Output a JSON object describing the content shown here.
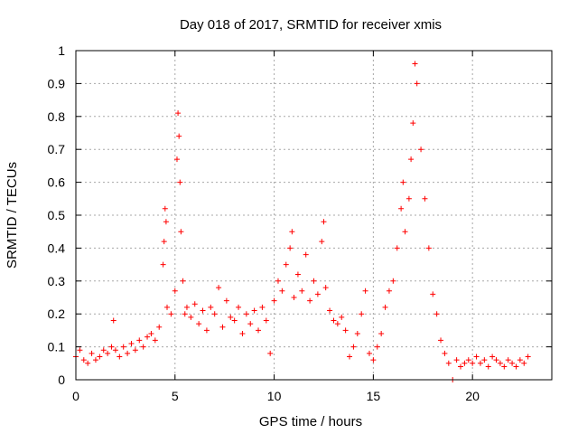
{
  "chart_data": {
    "type": "scatter",
    "title": "Day 018 of 2017, SRMTID for receiver xmis",
    "xlabel": "GPS time / hours",
    "ylabel": "SRMTID / TECUs",
    "xlim": [
      0,
      24
    ],
    "ylim": [
      0,
      1
    ],
    "xticks": [
      0,
      5,
      10,
      15,
      20
    ],
    "xtick_labels": [
      "0",
      "5",
      "10",
      "15",
      "20"
    ],
    "yticks": [
      0,
      0.1,
      0.2,
      0.3,
      0.4,
      0.5,
      0.6,
      0.7,
      0.8,
      0.9,
      1
    ],
    "ytick_labels": [
      "0",
      "0.1",
      "0.2",
      "0.3",
      "0.4",
      "0.5",
      "0.6",
      "0.7",
      "0.8",
      "0.9",
      "1"
    ],
    "grid": true,
    "marker": "+",
    "marker_color": "#ff0000",
    "series": [
      {
        "name": "SRMTID",
        "x": [
          0.0,
          0.2,
          0.4,
          0.6,
          0.8,
          1.0,
          1.2,
          1.4,
          1.6,
          1.8,
          1.9,
          2.0,
          2.2,
          2.4,
          2.6,
          2.8,
          3.0,
          3.2,
          3.4,
          3.6,
          3.8,
          4.0,
          4.2,
          4.4,
          4.45,
          4.5,
          4.55,
          4.6,
          4.8,
          5.0,
          5.1,
          5.15,
          5.2,
          5.25,
          5.3,
          5.4,
          5.5,
          5.6,
          5.8,
          6.0,
          6.2,
          6.4,
          6.6,
          6.8,
          7.0,
          7.2,
          7.4,
          7.6,
          7.8,
          8.0,
          8.2,
          8.4,
          8.6,
          8.8,
          9.0,
          9.2,
          9.4,
          9.6,
          9.8,
          10.0,
          10.2,
          10.4,
          10.6,
          10.8,
          10.9,
          11.0,
          11.2,
          11.4,
          11.6,
          11.8,
          12.0,
          12.2,
          12.4,
          12.5,
          12.6,
          12.8,
          13.0,
          13.2,
          13.4,
          13.6,
          13.8,
          14.0,
          14.2,
          14.4,
          14.6,
          14.8,
          15.0,
          15.2,
          15.4,
          15.6,
          15.8,
          16.0,
          16.2,
          16.4,
          16.5,
          16.6,
          16.8,
          16.9,
          17.0,
          17.1,
          17.2,
          17.4,
          17.6,
          17.8,
          18.0,
          18.2,
          18.4,
          18.6,
          18.8,
          19.0,
          19.2,
          19.4,
          19.6,
          19.8,
          20.0,
          20.2,
          20.4,
          20.6,
          20.8,
          21.0,
          21.2,
          21.4,
          21.6,
          21.8,
          22.0,
          22.2,
          22.4,
          22.6,
          22.8
        ],
        "y": [
          0.07,
          0.09,
          0.06,
          0.05,
          0.08,
          0.06,
          0.07,
          0.09,
          0.08,
          0.1,
          0.18,
          0.09,
          0.07,
          0.1,
          0.08,
          0.11,
          0.09,
          0.12,
          0.1,
          0.13,
          0.14,
          0.12,
          0.16,
          0.35,
          0.42,
          0.52,
          0.48,
          0.22,
          0.2,
          0.27,
          0.67,
          0.81,
          0.74,
          0.6,
          0.45,
          0.3,
          0.2,
          0.22,
          0.19,
          0.23,
          0.17,
          0.21,
          0.15,
          0.22,
          0.2,
          0.28,
          0.16,
          0.24,
          0.19,
          0.18,
          0.22,
          0.14,
          0.2,
          0.17,
          0.21,
          0.15,
          0.22,
          0.18,
          0.08,
          0.24,
          0.3,
          0.27,
          0.35,
          0.4,
          0.45,
          0.25,
          0.32,
          0.27,
          0.38,
          0.24,
          0.3,
          0.26,
          0.42,
          0.48,
          0.28,
          0.21,
          0.18,
          0.17,
          0.19,
          0.15,
          0.07,
          0.1,
          0.14,
          0.2,
          0.27,
          0.08,
          0.06,
          0.1,
          0.14,
          0.22,
          0.27,
          0.3,
          0.4,
          0.52,
          0.6,
          0.45,
          0.55,
          0.67,
          0.78,
          0.96,
          0.9,
          0.7,
          0.55,
          0.4,
          0.26,
          0.2,
          0.12,
          0.08,
          0.05,
          0.0,
          0.06,
          0.04,
          0.05,
          0.06,
          0.05,
          0.07,
          0.05,
          0.06,
          0.04,
          0.07,
          0.06,
          0.05,
          0.04,
          0.06,
          0.05,
          0.04,
          0.06,
          0.05,
          0.07
        ]
      }
    ]
  }
}
